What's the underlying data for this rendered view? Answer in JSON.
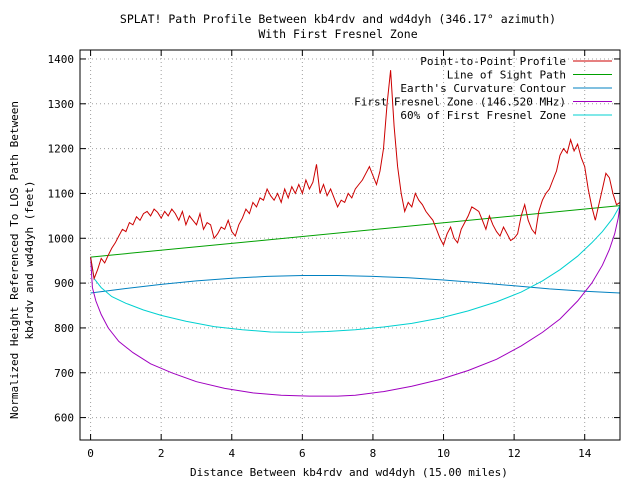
{
  "chart_data": {
    "type": "line",
    "title_line1": "SPLAT! Path Profile Between kb4rdv and wd4dyh (346.17° azimuth)",
    "title_line2": "With First Fresnel Zone",
    "xlabel": "Distance Between kb4rdv and wd4dyh (15.00 miles)",
    "ylabel_line1": "Normalized Height Referenced To LOS Path Between",
    "ylabel_line2": "kb4rdv and wd4dyh (feet)",
    "xlim": [
      -0.3,
      15.0
    ],
    "ylim": [
      550,
      1420
    ],
    "x_ticks": [
      0,
      2,
      4,
      6,
      8,
      10,
      12,
      14
    ],
    "y_ticks": [
      600,
      700,
      800,
      900,
      1000,
      1100,
      1200,
      1300,
      1400
    ],
    "grid": true,
    "legend_position": "top-right",
    "series": [
      {
        "name": "Point-to-Point Profile",
        "color": "#cc0000",
        "x": [
          0,
          0.1,
          0.2,
          0.3,
          0.4,
          0.5,
          0.6,
          0.7,
          0.8,
          0.9,
          1.0,
          1.1,
          1.2,
          1.3,
          1.4,
          1.5,
          1.6,
          1.7,
          1.8,
          1.9,
          2.0,
          2.1,
          2.2,
          2.3,
          2.4,
          2.5,
          2.6,
          2.7,
          2.8,
          2.9,
          3.0,
          3.1,
          3.2,
          3.3,
          3.4,
          3.5,
          3.6,
          3.7,
          3.8,
          3.9,
          4.0,
          4.1,
          4.2,
          4.3,
          4.4,
          4.5,
          4.6,
          4.7,
          4.8,
          4.9,
          5.0,
          5.1,
          5.2,
          5.3,
          5.4,
          5.5,
          5.6,
          5.7,
          5.8,
          5.9,
          6.0,
          6.1,
          6.2,
          6.3,
          6.4,
          6.5,
          6.6,
          6.7,
          6.8,
          6.9,
          7.0,
          7.1,
          7.2,
          7.3,
          7.4,
          7.5,
          7.6,
          7.7,
          7.8,
          7.9,
          8.0,
          8.1,
          8.2,
          8.3,
          8.4,
          8.5,
          8.6,
          8.7,
          8.8,
          8.9,
          9.0,
          9.1,
          9.2,
          9.3,
          9.4,
          9.5,
          9.6,
          9.7,
          9.8,
          9.9,
          10.0,
          10.1,
          10.2,
          10.3,
          10.4,
          10.5,
          10.6,
          10.7,
          10.8,
          10.9,
          11.0,
          11.1,
          11.2,
          11.3,
          11.4,
          11.5,
          11.6,
          11.7,
          11.8,
          11.9,
          12.0,
          12.1,
          12.2,
          12.3,
          12.4,
          12.5,
          12.6,
          12.7,
          12.8,
          12.9,
          13.0,
          13.1,
          13.2,
          13.3,
          13.4,
          13.5,
          13.6,
          13.7,
          13.8,
          13.9,
          14.0,
          14.1,
          14.2,
          14.3,
          14.4,
          14.5,
          14.6,
          14.7,
          14.8,
          14.9,
          15.0
        ],
        "values": [
          958,
          910,
          930,
          955,
          945,
          962,
          978,
          990,
          1005,
          1020,
          1015,
          1035,
          1030,
          1048,
          1040,
          1055,
          1060,
          1050,
          1065,
          1058,
          1045,
          1060,
          1050,
          1065,
          1055,
          1040,
          1060,
          1030,
          1050,
          1040,
          1030,
          1055,
          1020,
          1035,
          1030,
          1000,
          1010,
          1025,
          1020,
          1040,
          1015,
          1005,
          1030,
          1045,
          1065,
          1055,
          1080,
          1070,
          1090,
          1085,
          1110,
          1095,
          1085,
          1100,
          1080,
          1110,
          1090,
          1115,
          1100,
          1120,
          1100,
          1130,
          1110,
          1125,
          1165,
          1100,
          1120,
          1095,
          1110,
          1090,
          1070,
          1085,
          1080,
          1100,
          1090,
          1110,
          1120,
          1130,
          1145,
          1160,
          1140,
          1120,
          1150,
          1200,
          1300,
          1375,
          1250,
          1160,
          1100,
          1060,
          1080,
          1070,
          1100,
          1085,
          1075,
          1060,
          1050,
          1040,
          1020,
          1000,
          985,
          1010,
          1025,
          1000,
          990,
          1020,
          1035,
          1050,
          1070,
          1065,
          1060,
          1040,
          1020,
          1050,
          1030,
          1015,
          1005,
          1025,
          1010,
          995,
          1000,
          1010,
          1050,
          1075,
          1040,
          1020,
          1010,
          1060,
          1085,
          1100,
          1110,
          1130,
          1150,
          1185,
          1200,
          1190,
          1220,
          1195,
          1210,
          1180,
          1160,
          1110,
          1070,
          1040,
          1075,
          1110,
          1145,
          1135,
          1100,
          1075,
          1080
        ],
        "legend_label": "Point-to-Point Profile"
      },
      {
        "name": "Line of Sight Path",
        "color": "#00a000",
        "x": [
          0,
          15
        ],
        "values": [
          958,
          1073
        ],
        "legend_label": "Line of Sight Path"
      },
      {
        "name": "Earth's Curvature Contour",
        "color": "#0080c0",
        "x": [
          0,
          1,
          2,
          3,
          4,
          5,
          6,
          7,
          8,
          9,
          10,
          11,
          12,
          13,
          14,
          15
        ],
        "values": [
          878,
          888,
          897,
          905,
          911,
          915,
          917,
          917,
          915,
          912,
          907,
          901,
          894,
          887,
          882,
          878
        ],
        "legend_label": "Earth's Curvature Contour"
      },
      {
        "name": "First Fresnel Zone (146.520 MHz)",
        "color": "#a000c0",
        "x": [
          0,
          0.05,
          0.15,
          0.3,
          0.5,
          0.8,
          1.2,
          1.7,
          2.3,
          3.0,
          3.8,
          4.6,
          5.4,
          6.2,
          7.0,
          7.5,
          8.3,
          9.1,
          9.9,
          10.7,
          11.5,
          12.2,
          12.8,
          13.3,
          13.8,
          14.2,
          14.5,
          14.7,
          14.85,
          14.95,
          15.0
        ],
        "values": [
          958,
          890,
          860,
          830,
          800,
          770,
          745,
          720,
          700,
          680,
          665,
          655,
          650,
          648,
          648,
          650,
          658,
          670,
          685,
          705,
          730,
          760,
          790,
          820,
          860,
          900,
          940,
          975,
          1010,
          1045,
          1073
        ],
        "legend_label": "First Fresnel Zone (146.520 MHz)"
      },
      {
        "name": "60% of First Fresnel Zone",
        "color": "#00d0d0",
        "x": [
          0,
          0.1,
          0.3,
          0.6,
          1.0,
          1.5,
          2.0,
          2.7,
          3.5,
          4.3,
          5.1,
          5.9,
          6.7,
          7.5,
          8.3,
          9.1,
          9.9,
          10.7,
          11.5,
          12.2,
          12.8,
          13.3,
          13.8,
          14.2,
          14.5,
          14.8,
          15.0
        ],
        "values": [
          958,
          910,
          890,
          870,
          855,
          840,
          828,
          815,
          803,
          796,
          791,
          790,
          792,
          796,
          802,
          810,
          822,
          838,
          858,
          880,
          905,
          930,
          960,
          990,
          1015,
          1045,
          1073
        ],
        "legend_label": "60% of First Fresnel Zone"
      }
    ]
  }
}
